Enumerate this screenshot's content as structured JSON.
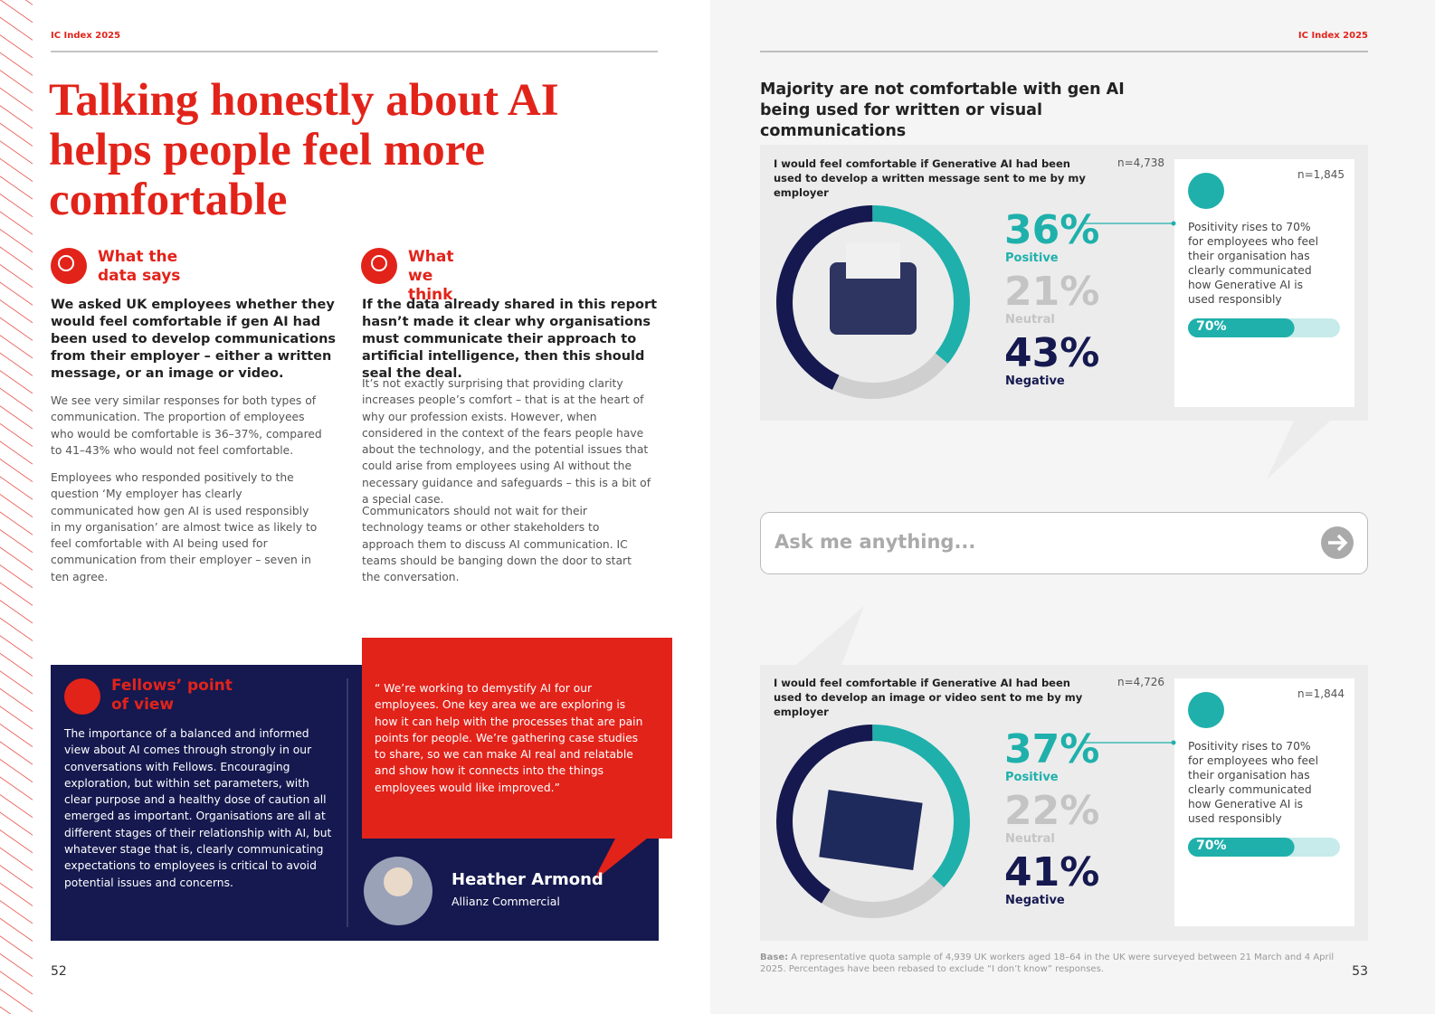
{
  "left_page": {
    "header": "IC Index 2025",
    "title": "Talking honestly about AI helps people feel more comfortable",
    "data_says": {
      "heading": "What the data says",
      "lead": "We asked UK employees whether they would feel comfortable if gen AI had been used to develop communications from their employer – either a written message, or an image or video.",
      "paragraphs": [
        "We see very similar responses for both types of communication. The proportion of employees who would be comfortable is 36–37%, compared to 41–43% who would not feel comfortable.",
        "Employees who responded positively to the question ‘My employer has clearly communicated how gen AI is used responsibly in my organisation’ are almost twice as likely to feel comfortable with AI being used for communication from their employer – seven in ten agree."
      ]
    },
    "we_think": {
      "heading": "What we think",
      "lead": "If the data already shared in this report hasn’t made it clear why organisations must communicate their approach to artificial intelligence, then this should seal the deal.",
      "paragraphs": [
        "It’s not exactly surprising that providing clarity increases people’s comfort – that is at the heart of why our profession exists. However, when considered in the context of the fears people have about the technology, and the potential issues that could arise from employees using AI without the necessary guidance and safeguards – this is a bit of a special case.",
        "Communicators should not wait for their technology teams or other stakeholders to approach them to discuss AI communication. IC teams should be banging down the door to start the conversation."
      ]
    },
    "fellows": {
      "heading": "Fellows’ point of view",
      "text": "The importance of a balanced and informed view about AI comes through strongly in our conversations with Fellows. Encouraging exploration, but within set parameters, with clear purpose and a healthy dose of caution all emerged as important. Organisations are all at different stages of their relationship with AI, but whatever stage that is, clearly communicating expectations to employees is critical to avoid potential issues and concerns."
    },
    "quote": {
      "text": "“ We’re working to demystify AI for our employees. One key area we are exploring is how it can help with the processes that are pain points for people. We’re gathering case studies to share, so we can make AI real and relatable and show how it connects into the things employees would like improved.”",
      "name": "Heather Armond",
      "organisation": "Allianz Commercial"
    },
    "page_number": "52"
  },
  "right_page": {
    "header": "IC Index 2025",
    "title": "Majority are not comfortable with gen AI being used for written or visual communications",
    "panels": [
      {
        "question": "I would feel comfortable if Generative AI had been used to develop a written message sent to me by my employer",
        "n": "n=4,738",
        "categories": [
          "Positive",
          "Neutral",
          "Negative"
        ],
        "values": [
          36,
          21,
          43
        ],
        "value_labels": [
          "36%",
          "21%",
          "43%"
        ],
        "colors": [
          "#1fb0ab",
          "#cfcfcf",
          "#15194f"
        ],
        "note_n": "n=1,845",
        "note": "Positivity rises to 70% for employees who feel their organisation has clearly communicated how Generative AI is used responsibly",
        "bar_value": 70,
        "bar_label": "70%",
        "bar_range": [
          0,
          100
        ]
      },
      {
        "question": "I would feel comfortable if Generative AI had been used to develop an image or video sent to me by my employer",
        "n": "n=4,726",
        "categories": [
          "Positive",
          "Neutral",
          "Negative"
        ],
        "values": [
          37,
          22,
          41
        ],
        "value_labels": [
          "37%",
          "22%",
          "41%"
        ],
        "colors": [
          "#1fb0ab",
          "#cfcfcf",
          "#15194f"
        ],
        "note_n": "n=1,844",
        "note": "Positivity rises to 70% for employees who feel their organisation has clearly communicated how Generative AI is used responsibly",
        "bar_value": 70,
        "bar_label": "70%",
        "bar_range": [
          0,
          100
        ]
      }
    ],
    "search_placeholder": "Ask me anything...",
    "base_label": "Base:",
    "base_text": "A representative quota sample of 4,939 UK workers aged 18–64 in the UK were surveyed between 21 March and 4 April 2025. Percentages have been rebased to exclude “I don’t know” responses.",
    "page_number": "53"
  }
}
